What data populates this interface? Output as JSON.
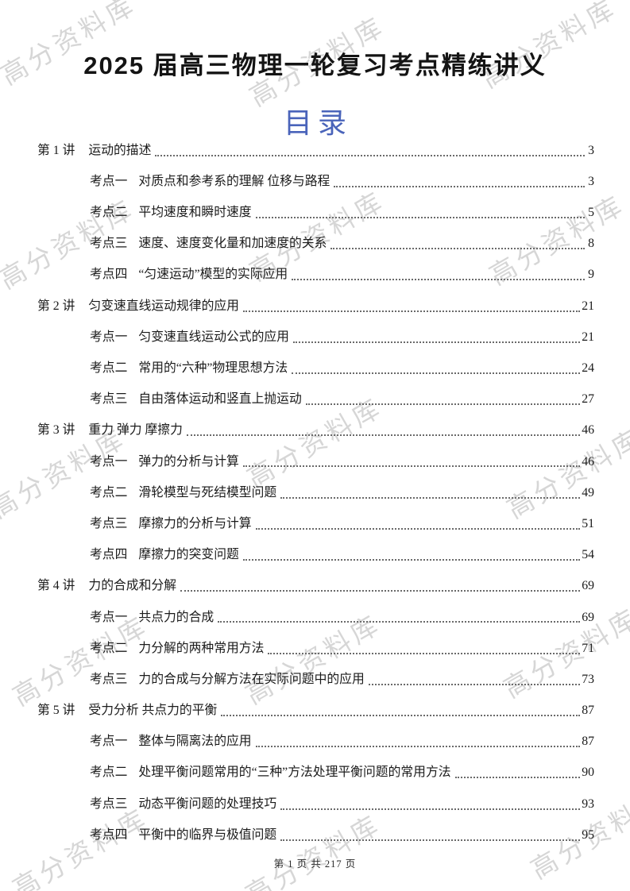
{
  "page": {
    "title": "2025 届高三物理一轮复习考点精练讲义",
    "toc_heading": "目录",
    "watermark": "高分资料库",
    "footer": "第 1 页 共 217 页",
    "accent_color": "#4a64ba"
  },
  "toc": {
    "entries": [
      {
        "level": 1,
        "label": "第 1 讲",
        "title": "运动的描述",
        "page": "3"
      },
      {
        "level": 2,
        "label": "考点一",
        "title": "对质点和参考系的理解 位移与路程",
        "page": "3"
      },
      {
        "level": 2,
        "label": "考点二",
        "title": "平均速度和瞬时速度",
        "page": "5"
      },
      {
        "level": 2,
        "label": "考点三",
        "title": "速度、速度变化量和加速度的关系",
        "page": "8"
      },
      {
        "level": 2,
        "label": "考点四",
        "title": "“匀速运动”模型的实际应用",
        "page": "9"
      },
      {
        "level": 1,
        "label": "第 2 讲",
        "title": "匀变速直线运动规律的应用",
        "page": "21"
      },
      {
        "level": 2,
        "label": "考点一",
        "title": "匀变速直线运动公式的应用",
        "page": "21"
      },
      {
        "level": 2,
        "label": "考点二",
        "title": "常用的“六种”物理思想方法",
        "page": "24"
      },
      {
        "level": 2,
        "label": "考点三",
        "title": "自由落体运动和竖直上抛运动",
        "page": "27"
      },
      {
        "level": 1,
        "label": "第 3 讲",
        "title": "重力 弹力 摩擦力",
        "page": "46"
      },
      {
        "level": 2,
        "label": "考点一",
        "title": "弹力的分析与计算",
        "page": "46"
      },
      {
        "level": 2,
        "label": "考点二",
        "title": "滑轮模型与死结模型问题",
        "page": "49"
      },
      {
        "level": 2,
        "label": "考点三",
        "title": "摩擦力的分析与计算",
        "page": "51"
      },
      {
        "level": 2,
        "label": "考点四",
        "title": "摩擦力的突变问题",
        "page": "54"
      },
      {
        "level": 1,
        "label": "第 4 讲",
        "title": "力的合成和分解",
        "page": "69"
      },
      {
        "level": 2,
        "label": "考点一",
        "title": "共点力的合成",
        "page": "69"
      },
      {
        "level": 2,
        "label": "考点二",
        "title": "力分解的两种常用方法",
        "page": "71"
      },
      {
        "level": 2,
        "label": "考点三",
        "title": "力的合成与分解方法在实际问题中的应用",
        "page": "73"
      },
      {
        "level": 1,
        "label": "第 5 讲",
        "title": "受力分析 共点力的平衡",
        "page": "87"
      },
      {
        "level": 2,
        "label": "考点一",
        "title": "整体与隔离法的应用",
        "page": "87"
      },
      {
        "level": 2,
        "label": "考点二",
        "title": "处理平衡问题常用的“三种”方法处理平衡问题的常用方法",
        "page": "90"
      },
      {
        "level": 2,
        "label": "考点三",
        "title": "动态平衡问题的处理技巧",
        "page": "93"
      },
      {
        "level": 2,
        "label": "考点四",
        "title": "平衡中的临界与极值问题",
        "page": "95"
      }
    ]
  }
}
